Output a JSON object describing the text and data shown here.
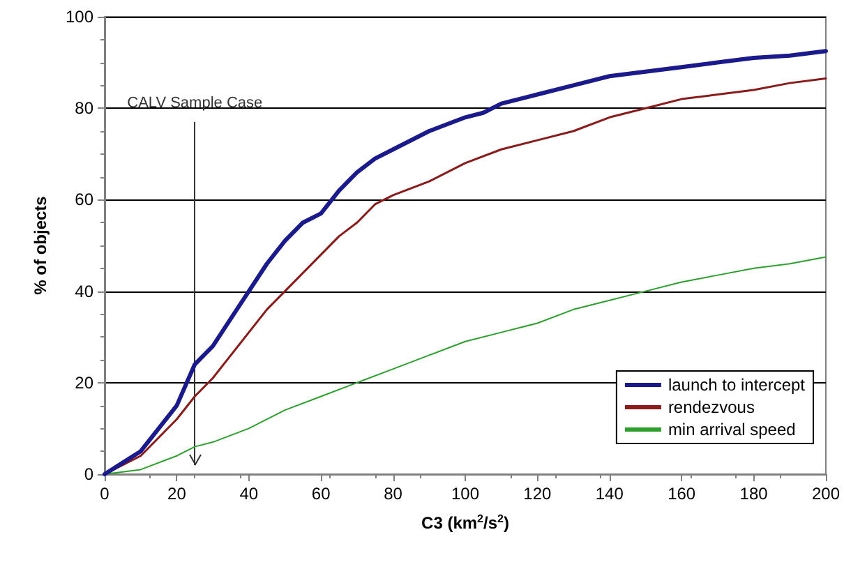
{
  "chart_data": {
    "type": "line",
    "xlabel": "C3 (km$^{2}$/s$^{2}$)",
    "ylabel": "% of objects",
    "xlim": [
      0,
      200
    ],
    "xticks": [
      0,
      20,
      40,
      60,
      80,
      100,
      120,
      140,
      160,
      180,
      200
    ],
    "ylim": [
      0,
      100
    ],
    "yticks": [
      0,
      20,
      40,
      60,
      80,
      100
    ],
    "grid": "y",
    "legend": "bottom right",
    "marker": "none",
    "line_style": "solid",
    "ref_lines": [
      {
        "axis": "x",
        "value": 25,
        "label": "CALV Sample Case",
        "color": "#333333"
      }
    ],
    "series": [
      {
        "name": "launch to intercept",
        "color": "#1a1a8c",
        "x": [
          0,
          5,
          10,
          15,
          20,
          25,
          30,
          35,
          40,
          45,
          50,
          55,
          60,
          65,
          70,
          75,
          80,
          90,
          100,
          105,
          110,
          120,
          130,
          140,
          150,
          160,
          170,
          180,
          190,
          200
        ],
        "values": [
          0,
          2.5,
          5,
          10,
          15,
          24,
          28,
          34,
          40,
          46,
          51,
          55,
          57,
          62,
          66,
          69,
          71,
          75,
          78,
          79,
          81,
          83,
          85,
          87,
          88,
          89,
          90,
          91,
          91.5,
          92.5
        ]
      },
      {
        "name": "rendezvous",
        "color": "#8b1a1a",
        "x": [
          0,
          5,
          10,
          15,
          20,
          25,
          30,
          35,
          40,
          45,
          50,
          55,
          60,
          65,
          70,
          75,
          80,
          90,
          100,
          110,
          120,
          130,
          140,
          150,
          160,
          170,
          180,
          190,
          200
        ],
        "values": [
          0,
          2,
          4,
          8,
          12,
          17,
          21,
          26,
          31,
          36,
          40,
          44,
          48,
          52,
          55,
          59,
          61,
          64,
          68,
          71,
          73,
          75,
          78,
          80,
          82,
          83,
          84,
          85.5,
          86.5
        ]
      },
      {
        "name": "min arrival speed",
        "color": "#2ca02c",
        "x": [
          0,
          10,
          20,
          25,
          30,
          40,
          50,
          60,
          70,
          80,
          90,
          100,
          110,
          120,
          130,
          140,
          150,
          160,
          170,
          180,
          190,
          200
        ],
        "values": [
          0,
          1,
          4,
          6,
          7,
          10,
          14,
          17,
          20,
          23,
          26,
          29,
          31,
          33,
          36,
          38,
          40,
          42,
          43.5,
          45,
          46,
          47.5
        ]
      }
    ]
  }
}
